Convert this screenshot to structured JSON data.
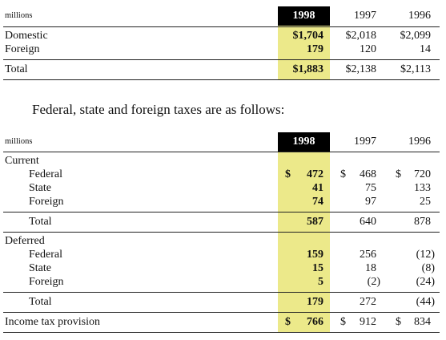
{
  "table1": {
    "unit": "millions",
    "years": [
      "1998",
      "1997",
      "1996"
    ],
    "rows": [
      {
        "label": "Domestic",
        "v1998": "$1,704",
        "v1997": "$2,018",
        "v1996": "$2,099"
      },
      {
        "label": "Foreign",
        "v1998": "179",
        "v1997": "120",
        "v1996": "14"
      }
    ],
    "total": {
      "label": "Total",
      "v1998": "$1,883",
      "v1997": "$2,138",
      "v1996": "$2,113"
    }
  },
  "heading": "Federal, state and foreign taxes are as follows:",
  "table2": {
    "unit": "millions",
    "years": [
      "1998",
      "1997",
      "1996"
    ],
    "current": {
      "label": "Current",
      "federal": {
        "label": "Federal",
        "d1998": "$",
        "v1998": "472",
        "d1997": "$",
        "v1997": "468",
        "d1996": "$",
        "v1996": "720"
      },
      "state": {
        "label": "State",
        "v1998": "41",
        "v1997": "75",
        "v1996": "133"
      },
      "foreign": {
        "label": "Foreign",
        "v1998": "74",
        "v1997": "97",
        "v1996": "25"
      },
      "total": {
        "label": "Total",
        "v1998": "587",
        "v1997": "640",
        "v1996": "878"
      }
    },
    "deferred": {
      "label": "Deferred",
      "federal": {
        "label": "Federal",
        "v1998": "159",
        "v1997": "256",
        "v1996": "(12)"
      },
      "state": {
        "label": "State",
        "v1998": "15",
        "v1997": "18",
        "v1996": "(8)"
      },
      "foreign": {
        "label": "Foreign",
        "v1998": "5",
        "v1997": "(2)",
        "v1996": "(24)"
      },
      "total": {
        "label": "Total",
        "v1998": "179",
        "v1997": "272",
        "v1996": "(44)"
      }
    },
    "provision": {
      "label": "Income tax provision",
      "d1998": "$",
      "v1998": "766",
      "d1997": "$",
      "v1997": "912",
      "d1996": "$",
      "v1996": "834"
    }
  }
}
